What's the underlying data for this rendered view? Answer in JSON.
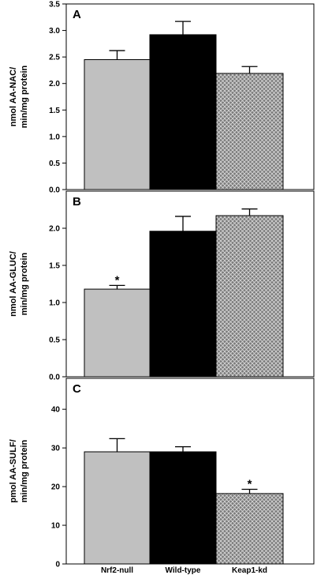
{
  "categories": [
    "Nrf2-null",
    "Wild-type",
    "Keap1-kd"
  ],
  "colors": {
    "Nrf2-null": "#c0c0c0",
    "Wild-type": "#000000",
    "Keap1-kd": "crosshatch-#7a7a7a"
  },
  "chart_data": [
    {
      "type": "bar",
      "panel": "A",
      "ylabel": [
        "nmol AA-NAC/",
        "min/mg protein"
      ],
      "categories": [
        "Nrf2-null",
        "Wild-type",
        "Keap1-kd"
      ],
      "values": [
        2.45,
        2.92,
        2.19
      ],
      "errors": [
        0.17,
        0.25,
        0.13
      ],
      "significance": [
        "",
        "",
        ""
      ],
      "ylim": [
        0,
        3.5
      ],
      "yticks": [
        "0.0",
        "0.5",
        "1.0",
        "1.5",
        "2.0",
        "2.5",
        "3.0",
        "3.5"
      ]
    },
    {
      "type": "bar",
      "panel": "B",
      "ylabel": [
        "nmol AA-GLUC/",
        "min/mg protein"
      ],
      "categories": [
        "Nrf2-null",
        "Wild-type",
        "Keap1-kd"
      ],
      "values": [
        1.18,
        1.96,
        2.17
      ],
      "errors": [
        0.05,
        0.2,
        0.09
      ],
      "significance": [
        "*",
        "",
        ""
      ],
      "ylim": [
        0,
        2.5
      ],
      "yticks": [
        "0.0",
        "0.5",
        "1.0",
        "1.5",
        "2.0"
      ]
    },
    {
      "type": "bar",
      "panel": "C",
      "ylabel": [
        "pmol AA-SULF/",
        "min/mg protein"
      ],
      "categories": [
        "Nrf2-null",
        "Wild-type",
        "Keap1-kd"
      ],
      "values": [
        29,
        29,
        18.2
      ],
      "errors": [
        3.4,
        1.3,
        1.1
      ],
      "significance": [
        "",
        "",
        "*"
      ],
      "ylim": [
        0,
        48
      ],
      "yticks": [
        "0",
        "10",
        "20",
        "30",
        "40"
      ]
    }
  ]
}
